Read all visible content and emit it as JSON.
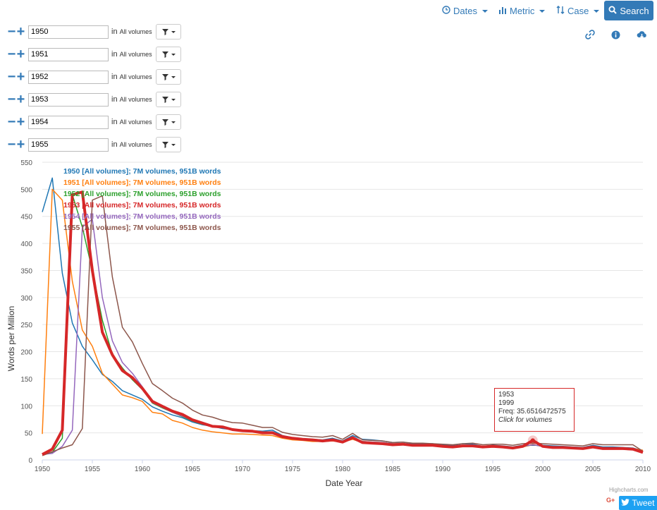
{
  "toolbar": {
    "dates_label": "Dates",
    "metric_label": "Metric",
    "case_label": "Case",
    "search_label": "Search"
  },
  "queries": [
    {
      "term": "1950",
      "in_label": "in",
      "scope": "All volumes"
    },
    {
      "term": "1951",
      "in_label": "in",
      "scope": "All volumes"
    },
    {
      "term": "1952",
      "in_label": "in",
      "scope": "All volumes"
    },
    {
      "term": "1953",
      "in_label": "in",
      "scope": "All volumes"
    },
    {
      "term": "1954",
      "in_label": "in",
      "scope": "All volumes"
    },
    {
      "term": "1955",
      "in_label": "in",
      "scope": "All volumes"
    }
  ],
  "tooltip": {
    "term": "1953",
    "year": "1999",
    "freq": "Freq: 35.6516472575",
    "link": "Click for volumes"
  },
  "footer": {
    "credit": "Highcharts.com",
    "gplus": "G+",
    "tweet": "Tweet"
  },
  "colors": {
    "accent": "#337ab7"
  },
  "chart_data": {
    "type": "line",
    "xlabel": "Date Year",
    "ylabel": "Words per Million",
    "xlim": [
      1950,
      2010
    ],
    "ylim": [
      0,
      550
    ],
    "xticks": [
      1950,
      1955,
      1960,
      1965,
      1970,
      1975,
      1980,
      1985,
      1990,
      1995,
      2000,
      2005,
      2010
    ],
    "yticks": [
      0,
      50,
      100,
      150,
      200,
      250,
      300,
      350,
      400,
      450,
      500,
      550
    ],
    "legend_position": "top-left",
    "highlighted_series": "1953 [All volumes]; 7M volumes, 951B words",
    "x": [
      1950,
      1951,
      1952,
      1953,
      1954,
      1955,
      1956,
      1957,
      1958,
      1959,
      1960,
      1961,
      1962,
      1963,
      1964,
      1965,
      1966,
      1967,
      1968,
      1969,
      1970,
      1971,
      1972,
      1973,
      1974,
      1975,
      1976,
      1977,
      1978,
      1979,
      1980,
      1981,
      1982,
      1983,
      1984,
      1985,
      1986,
      1987,
      1988,
      1989,
      1990,
      1991,
      1992,
      1993,
      1994,
      1995,
      1996,
      1997,
      1998,
      1999,
      2000,
      2001,
      2002,
      2003,
      2004,
      2005,
      2006,
      2007,
      2008,
      2009,
      2010
    ],
    "series": [
      {
        "name": "1950 [All volumes]; 7M volumes, 951B words",
        "color": "#1f77b4",
        "values": [
          458,
          521,
          345,
          253,
          210,
          185,
          158,
          145,
          128,
          120,
          112,
          98,
          90,
          83,
          78,
          70,
          65,
          62,
          58,
          56,
          55,
          54,
          53,
          55,
          45,
          41,
          39,
          38,
          37,
          40,
          35,
          45,
          38,
          37,
          35,
          32,
          33,
          30,
          30,
          30,
          27,
          27,
          30,
          29,
          25,
          27,
          26,
          24,
          27,
          27,
          27,
          26,
          25,
          24,
          23,
          27,
          24,
          24,
          23,
          22,
          17
        ]
      },
      {
        "name": "1951 [All volumes]; 7M volumes, 951B words",
        "color": "#ff7f0e",
        "values": [
          48,
          500,
          480,
          330,
          240,
          210,
          160,
          140,
          120,
          115,
          108,
          88,
          85,
          73,
          68,
          60,
          55,
          52,
          50,
          48,
          48,
          47,
          46,
          45,
          40,
          37,
          36,
          34,
          34,
          35,
          33,
          38,
          32,
          31,
          30,
          28,
          28,
          26,
          27,
          26,
          24,
          24,
          25,
          26,
          24,
          25,
          24,
          23,
          24,
          28,
          25,
          24,
          24,
          23,
          22,
          24,
          22,
          22,
          22,
          21,
          18
        ]
      },
      {
        "name": "1952 [All volumes]; 7M volumes, 951B words",
        "color": "#2ca02c",
        "values": [
          10,
          14,
          40,
          490,
          430,
          350,
          258,
          195,
          170,
          148,
          130,
          105,
          96,
          88,
          80,
          72,
          66,
          63,
          60,
          56,
          55,
          54,
          52,
          52,
          44,
          41,
          38,
          37,
          36,
          38,
          34,
          42,
          34,
          33,
          32,
          30,
          30,
          28,
          28,
          28,
          26,
          25,
          27,
          27,
          25,
          25,
          25,
          23,
          25,
          28,
          25,
          24,
          24,
          23,
          22,
          24,
          22,
          22,
          22,
          21,
          15
        ]
      },
      {
        "name": "1953 [All volumes]; 7M volumes, 951B words",
        "color": "#d62728",
        "values": [
          10,
          20,
          55,
          490,
          495,
          350,
          236,
          194,
          165,
          152,
          132,
          108,
          99,
          90,
          84,
          74,
          68,
          62,
          61,
          56,
          54,
          53,
          50,
          50,
          43,
          40,
          38,
          37,
          35,
          37,
          33,
          41,
          32,
          31,
          30,
          28,
          29,
          27,
          27,
          27,
          25,
          24,
          26,
          26,
          24,
          25,
          24,
          22,
          25,
          36,
          25,
          23,
          23,
          22,
          21,
          24,
          21,
          21,
          21,
          20,
          14
        ]
      },
      {
        "name": "1954 [All volumes]; 7M volumes, 951B words",
        "color": "#9467bd",
        "values": [
          10,
          12,
          25,
          55,
          430,
          445,
          300,
          220,
          180,
          160,
          135,
          106,
          97,
          88,
          81,
          73,
          67,
          63,
          60,
          56,
          55,
          54,
          52,
          52,
          44,
          41,
          38,
          37,
          36,
          38,
          34,
          42,
          34,
          33,
          32,
          30,
          30,
          28,
          28,
          28,
          26,
          25,
          27,
          27,
          25,
          25,
          25,
          23,
          25,
          28,
          25,
          24,
          24,
          23,
          22,
          24,
          22,
          22,
          22,
          21,
          15
        ]
      },
      {
        "name": "1955 [All volumes]; 7M volumes, 951B words",
        "color": "#8c564b",
        "values": [
          8,
          15,
          22,
          28,
          58,
          480,
          488,
          338,
          245,
          218,
          178,
          141,
          128,
          114,
          105,
          92,
          83,
          79,
          73,
          69,
          68,
          64,
          60,
          60,
          51,
          47,
          45,
          43,
          42,
          45,
          38,
          49,
          37,
          36,
          35,
          32,
          33,
          31,
          31,
          30,
          29,
          28,
          30,
          31,
          28,
          29,
          29,
          27,
          30,
          31,
          30,
          29,
          28,
          27,
          26,
          30,
          28,
          28,
          28,
          28,
          16
        ]
      }
    ]
  }
}
